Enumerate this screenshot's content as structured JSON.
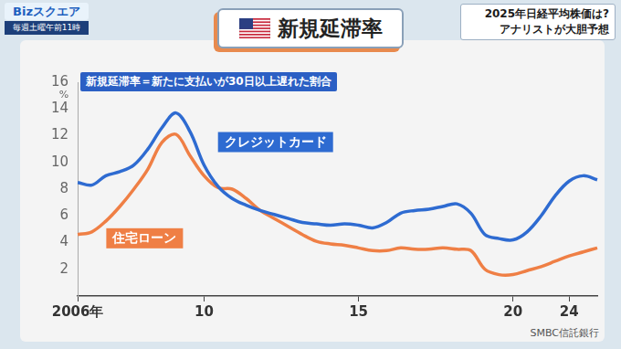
{
  "screen": {
    "logo": "Bizスクエア",
    "schedule": "毎週土曜午前11時",
    "headline": [
      "2025年日経平均株価は?",
      "アナリストが大胆予想"
    ]
  },
  "chart_data": {
    "type": "line",
    "title": "新規延滞率",
    "subtitle": "新規延滞率＝新たに支払いが30日以上遅れた割合",
    "source": "SMBC信託銀行",
    "y_label": "%",
    "categories": [
      "2006年",
      null,
      null,
      null,
      null,
      null,
      null,
      null,
      null,
      "10",
      null,
      null,
      null,
      null,
      null,
      null,
      null,
      null,
      null,
      null,
      "15",
      null,
      null,
      null,
      null,
      null,
      null,
      null,
      null,
      null,
      null,
      "20",
      null,
      null,
      null,
      "24",
      null,
      null
    ],
    "series": [
      {
        "name": "クレジットカード",
        "color": "#2e6bd1",
        "values": [
          8.5,
          8.3,
          9.0,
          9.3,
          9.8,
          11.0,
          12.6,
          13.7,
          12.3,
          9.8,
          8.2,
          7.3,
          6.8,
          6.4,
          6.1,
          5.8,
          5.5,
          5.4,
          5.3,
          5.4,
          5.3,
          5.1,
          5.5,
          6.2,
          6.4,
          6.5,
          6.7,
          6.9,
          6.2,
          4.6,
          4.3,
          4.2,
          4.8,
          6.0,
          7.5,
          8.6,
          9.0,
          8.7
        ]
      },
      {
        "name": "住宅ローン",
        "color": "#ef7f45",
        "values": [
          4.6,
          4.8,
          5.6,
          6.7,
          8.0,
          9.5,
          11.5,
          12.1,
          10.5,
          9.0,
          8.1,
          8.0,
          7.3,
          6.4,
          5.8,
          5.2,
          4.6,
          4.1,
          3.9,
          3.8,
          3.6,
          3.4,
          3.4,
          3.6,
          3.5,
          3.5,
          3.6,
          3.5,
          3.4,
          2.0,
          1.6,
          1.6,
          1.9,
          2.2,
          2.6,
          3.0,
          3.3,
          3.6
        ]
      }
    ],
    "ylim": [
      0,
      16
    ],
    "yticks": [
      2,
      4,
      6,
      8,
      10,
      12,
      14,
      16
    ],
    "grid": false
  }
}
